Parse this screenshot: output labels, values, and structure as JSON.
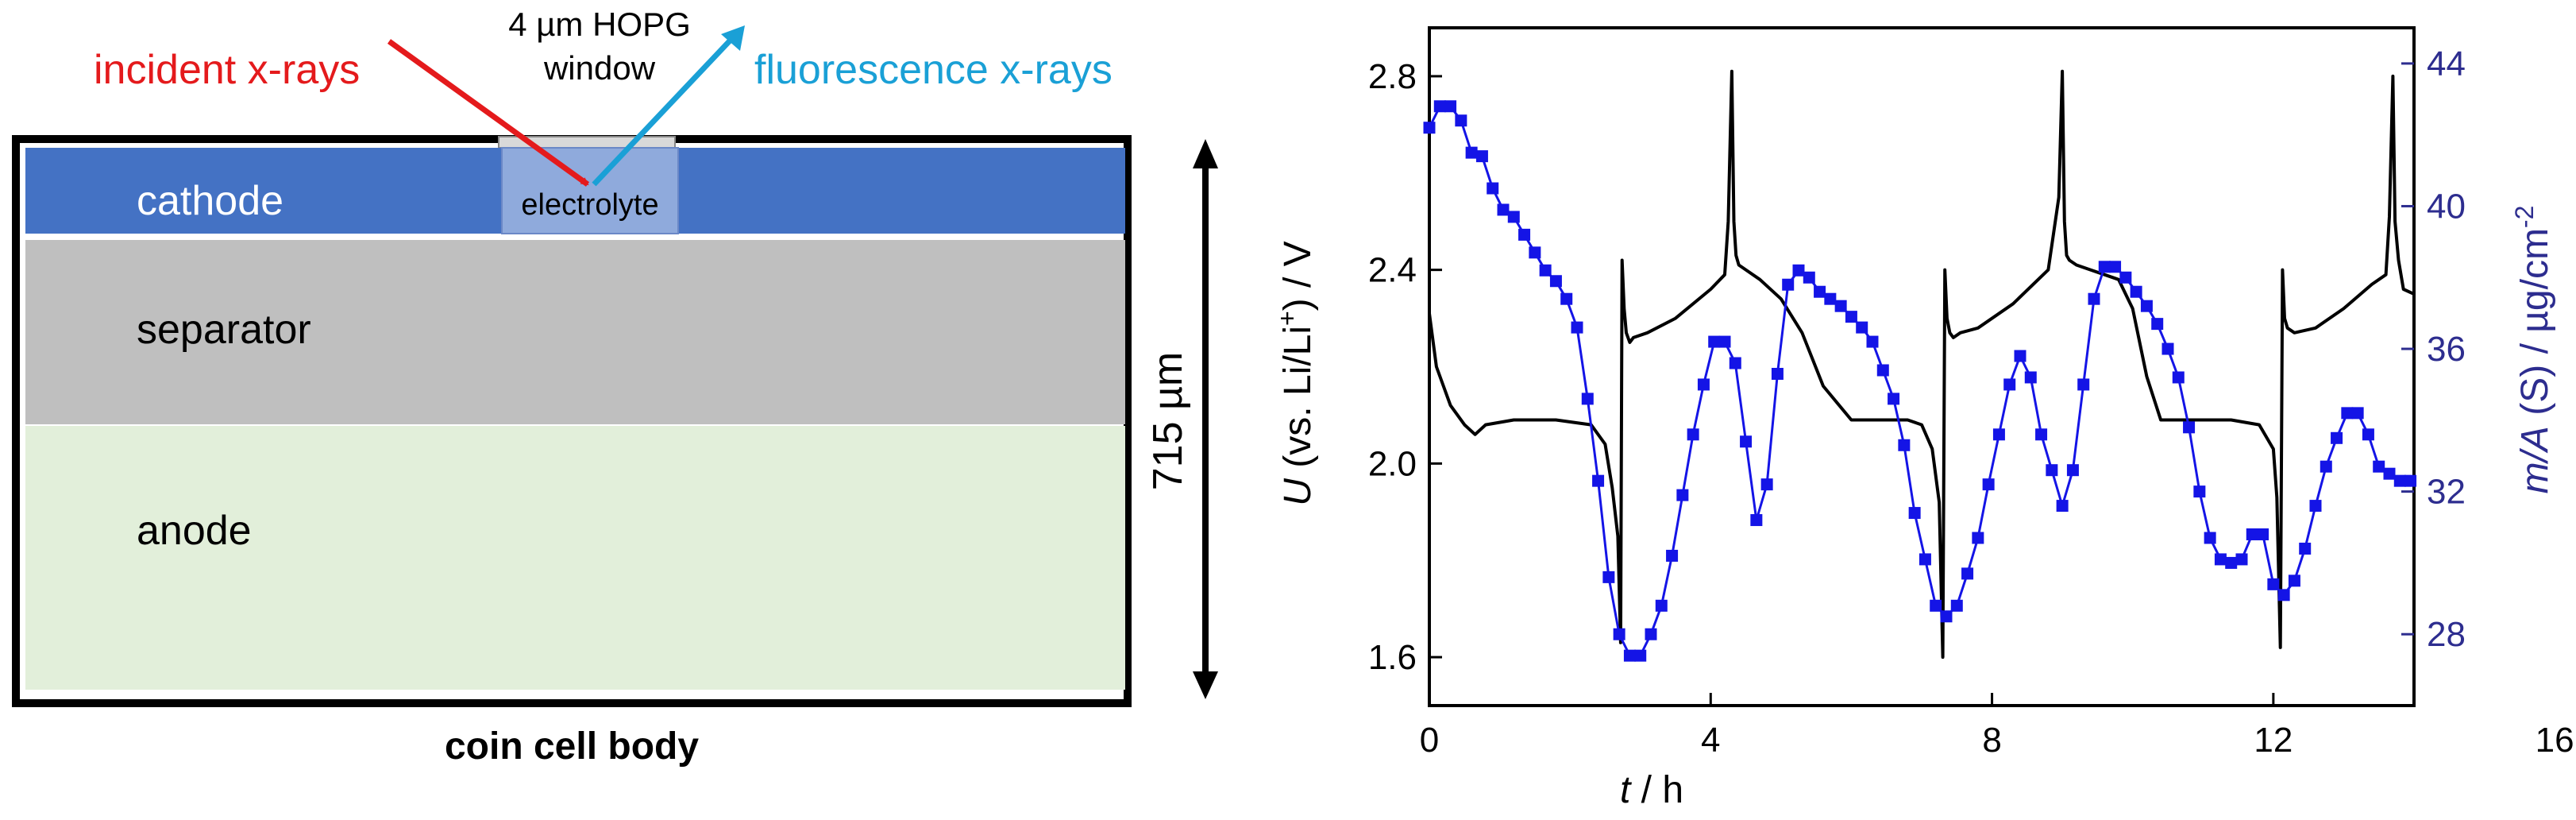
{
  "schematic": {
    "incident_label": "incident x-rays",
    "window_label_line1": "4 µm HOPG",
    "window_label_line2": "window",
    "fluorescence_label": "fluorescence x-rays",
    "cathode_label": "cathode",
    "electrolyte_label": "electrolyte",
    "separator_label": "separator",
    "anode_label": "anode",
    "thickness_label": "715 µm",
    "body_label": "coin cell body"
  },
  "colors": {
    "incident": "#e41a1c",
    "fluorescence": "#1aa0d6",
    "cathode": "#4472c4",
    "electrolyte_window": "#8faadc",
    "separator": "#bfbfbf",
    "anode": "#e2efda",
    "voltage_line": "#000000",
    "mass_series": "#1414e6",
    "right_axis": "#2d2d8f"
  },
  "chart_data": {
    "type": "line",
    "title": "",
    "xlabel_italic": "t",
    "xlabel_rest": " / h",
    "ylabel_left_italic": "U",
    "ylabel_left_rest": " (vs. Li/Li",
    "ylabel_left_sup": "+",
    "ylabel_left_end": ") / V",
    "ylabel_right_italic": "m/A",
    "ylabel_right_rest": " (S) / µg/cm",
    "ylabel_right_sup": "-2",
    "xlim": [
      0,
      14
    ],
    "ylim_left": [
      1.5,
      2.9
    ],
    "ylim_right": [
      26,
      45
    ],
    "x_ticks": [
      0,
      4,
      8,
      12,
      16
    ],
    "x_tick_labels": [
      "0",
      "4",
      "8",
      "12",
      "16"
    ],
    "y_left_ticks": [
      1.6,
      2.0,
      2.4,
      2.8
    ],
    "y_left_tick_labels": [
      "1.6",
      "2.0",
      "2.4",
      "2.8"
    ],
    "y_right_ticks": [
      28,
      32,
      36,
      40,
      44
    ],
    "y_right_tick_labels": [
      "28",
      "32",
      "36",
      "40",
      "44"
    ],
    "series": [
      {
        "name": "U (vs. Li/Li+)",
        "axis": "left",
        "style": "line",
        "x": [
          0,
          0.1,
          0.3,
          0.5,
          0.65,
          0.8,
          1.2,
          1.8,
          2.3,
          2.5,
          2.6,
          2.68,
          2.72,
          2.74,
          2.77,
          2.8,
          2.85,
          2.9,
          3.1,
          3.5,
          4.0,
          4.2,
          4.25,
          4.3,
          4.33,
          4.36,
          4.4,
          4.5,
          4.7,
          5.0,
          5.3,
          5.6,
          6.0,
          6.5,
          6.8,
          7.0,
          7.15,
          7.25,
          7.3,
          7.33,
          7.36,
          7.4,
          7.45,
          7.55,
          7.8,
          8.3,
          8.8,
          8.95,
          9.0,
          9.03,
          9.06,
          9.1,
          9.2,
          9.4,
          9.6,
          9.8,
          10.0,
          10.2,
          10.4,
          10.8,
          11.4,
          11.8,
          12.0,
          12.05,
          12.1,
          12.13,
          12.16,
          12.2,
          12.3,
          12.6,
          13.0,
          13.4,
          13.6,
          13.65,
          13.7,
          13.73,
          13.78,
          13.85,
          14.0
        ],
        "y": [
          2.31,
          2.2,
          2.12,
          2.08,
          2.06,
          2.08,
          2.09,
          2.09,
          2.08,
          2.04,
          1.95,
          1.85,
          1.63,
          2.42,
          2.32,
          2.27,
          2.25,
          2.26,
          2.27,
          2.3,
          2.36,
          2.39,
          2.5,
          2.81,
          2.5,
          2.43,
          2.41,
          2.4,
          2.38,
          2.34,
          2.27,
          2.16,
          2.09,
          2.09,
          2.09,
          2.08,
          2.03,
          1.92,
          1.6,
          2.4,
          2.3,
          2.27,
          2.26,
          2.27,
          2.28,
          2.33,
          2.4,
          2.55,
          2.81,
          2.5,
          2.43,
          2.42,
          2.41,
          2.4,
          2.39,
          2.38,
          2.32,
          2.18,
          2.09,
          2.09,
          2.09,
          2.08,
          2.03,
          1.93,
          1.62,
          2.4,
          2.3,
          2.28,
          2.27,
          2.28,
          2.32,
          2.37,
          2.39,
          2.51,
          2.8,
          2.5,
          2.42,
          2.36,
          2.35
        ]
      },
      {
        "name": "m/A (S)",
        "axis": "right",
        "style": "line-markers-square",
        "x": [
          0.0,
          0.15,
          0.3,
          0.45,
          0.6,
          0.75,
          0.9,
          1.05,
          1.2,
          1.35,
          1.5,
          1.65,
          1.8,
          1.95,
          2.1,
          2.25,
          2.4,
          2.55,
          2.7,
          2.85,
          3.0,
          3.15,
          3.3,
          3.45,
          3.6,
          3.75,
          3.9,
          4.05,
          4.2,
          4.35,
          4.5,
          4.65,
          4.8,
          4.95,
          5.1,
          5.25,
          5.4,
          5.55,
          5.7,
          5.85,
          6.0,
          6.15,
          6.3,
          6.45,
          6.6,
          6.75,
          6.9,
          7.05,
          7.2,
          7.35,
          7.5,
          7.65,
          7.8,
          7.95,
          8.1,
          8.25,
          8.4,
          8.55,
          8.7,
          8.85,
          9.0,
          9.15,
          9.3,
          9.45,
          9.6,
          9.75,
          9.9,
          10.05,
          10.2,
          10.35,
          10.5,
          10.65,
          10.8,
          10.95,
          11.1,
          11.25,
          11.4,
          11.55,
          11.7,
          11.85,
          12.0,
          12.15,
          12.3,
          12.45,
          12.6,
          12.75,
          12.9,
          13.05,
          13.2,
          13.35,
          13.5,
          13.65,
          13.8,
          13.95
        ],
        "values": [
          42.2,
          42.8,
          42.8,
          42.4,
          41.5,
          41.4,
          40.5,
          39.9,
          39.7,
          39.2,
          38.7,
          38.2,
          37.9,
          37.4,
          36.6,
          34.6,
          32.3,
          29.6,
          28.0,
          27.4,
          27.4,
          28.0,
          28.8,
          30.2,
          31.9,
          33.6,
          35.0,
          36.2,
          36.2,
          35.6,
          33.4,
          31.2,
          32.2,
          35.3,
          37.8,
          38.2,
          38.0,
          37.6,
          37.4,
          37.2,
          36.9,
          36.6,
          36.2,
          35.4,
          34.6,
          33.3,
          31.4,
          30.1,
          28.8,
          28.5,
          28.8,
          29.7,
          30.7,
          32.2,
          33.6,
          35.0,
          35.8,
          35.2,
          33.6,
          32.6,
          31.6,
          32.6,
          35.0,
          37.4,
          38.3,
          38.3,
          38.0,
          37.6,
          37.2,
          36.7,
          36.0,
          35.2,
          33.8,
          32.0,
          30.7,
          30.1,
          30.0,
          30.1,
          30.8,
          30.8,
          29.4,
          29.1,
          29.5,
          30.4,
          31.6,
          32.7,
          33.5,
          34.2,
          34.2,
          33.6,
          32.7,
          32.5,
          32.3,
          32.3
        ]
      }
    ]
  }
}
